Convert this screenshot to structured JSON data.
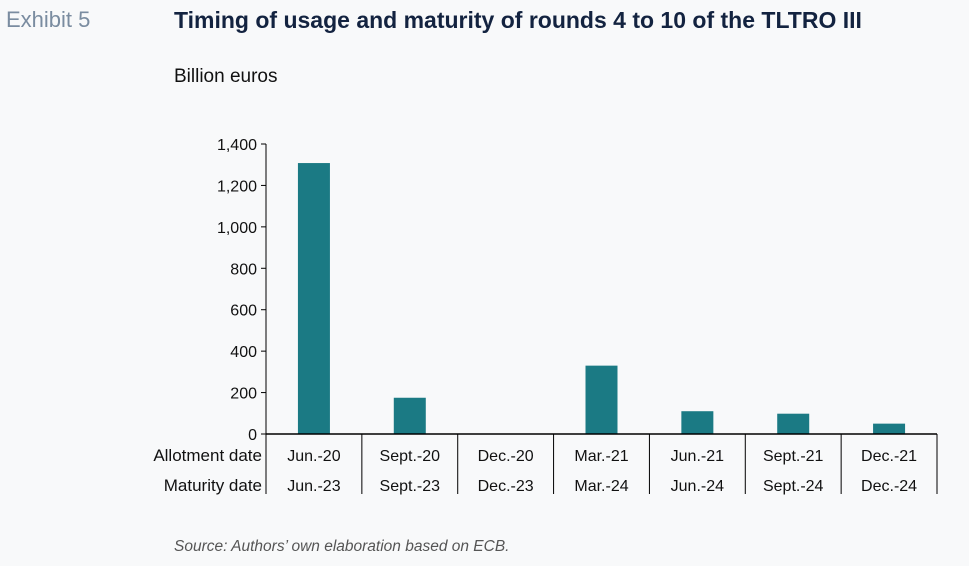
{
  "exhibit_label": "Exhibit 5",
  "title": "Timing of usage and maturity of rounds 4 to 10 of the TLTRO III",
  "unit_label": "Billion euros",
  "source": "Source: Authors’ own elaboration based on ECB.",
  "colors": {
    "bar": "#1b7a84",
    "axis": "#000000",
    "text": "#111111"
  },
  "chart_data": {
    "type": "bar",
    "row_labels": [
      "Allotment date",
      "Maturity date"
    ],
    "categories": [
      "Jun.-20",
      "Sept.-20",
      "Dec.-20",
      "Mar.-21",
      "Jun.-21",
      "Sept.-21",
      "Dec.-21"
    ],
    "maturity": [
      "Jun.-23",
      "Sept.-23",
      "Dec.-23",
      "Mar.-24",
      "Jun.-24",
      "Sept.-24",
      "Dec.-24"
    ],
    "values": [
      1308,
      175,
      0,
      330,
      110,
      98,
      50
    ],
    "yticks": [
      0,
      200,
      400,
      600,
      800,
      1000,
      1200,
      1400
    ],
    "ytick_labels": [
      "0",
      "200",
      "400",
      "600",
      "800",
      "1,000",
      "1,200",
      "1,400"
    ],
    "ylim": [
      0,
      1400
    ],
    "grid": false,
    "legend": "none"
  }
}
